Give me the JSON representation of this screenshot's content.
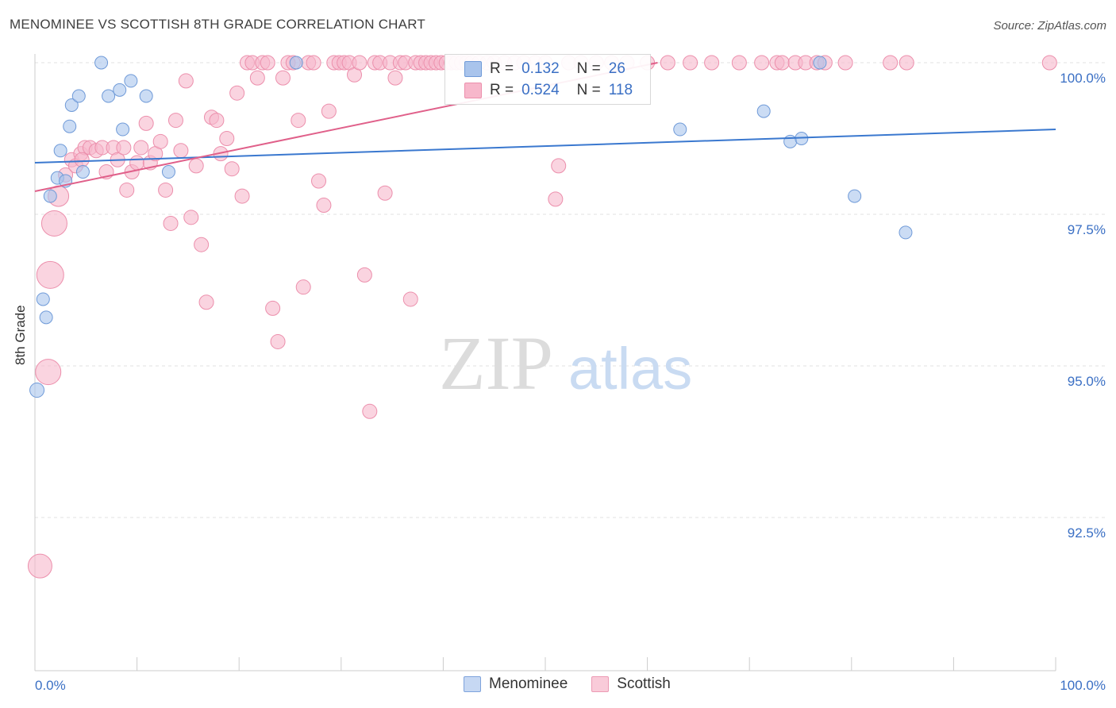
{
  "title": "MENOMINEE VS SCOTTISH 8TH GRADE CORRELATION CHART",
  "source": "Source: ZipAtlas.com",
  "watermark": {
    "zip": "ZIP",
    "atlas": "atlas"
  },
  "legend_stats": [
    {
      "r_label": "R =",
      "r_value": "0.132",
      "n_label": "N =",
      "n_value": "26",
      "color": "#a9c4ec",
      "stroke": "#6f9ad8"
    },
    {
      "r_label": "R =",
      "r_value": "0.524",
      "n_label": "N =",
      "n_value": "118",
      "color": "#f7b7cb",
      "stroke": "#ec8fac"
    }
  ],
  "bottom_legend": [
    "Menominee",
    "Scottish"
  ],
  "chart_data": {
    "type": "scatter",
    "xlabel": "",
    "ylabel": "8th Grade",
    "xlim": [
      0,
      100
    ],
    "ylim": [
      90.0,
      100.3
    ],
    "x_tick_labels": [
      "0.0%",
      "100.0%"
    ],
    "y_ticks": [
      {
        "value": 100.0,
        "label": "100.0%"
      },
      {
        "value": 97.5,
        "label": "97.5%"
      },
      {
        "value": 95.0,
        "label": "95.0%"
      },
      {
        "value": 92.5,
        "label": "92.5%"
      }
    ],
    "grid": true,
    "series": [
      {
        "name": "Menominee",
        "color": "#a9c4ec",
        "stroke": "#6f9ad8",
        "line_color": "#3a78cf",
        "trend": [
          [
            0,
            98.35
          ],
          [
            100,
            98.9
          ]
        ],
        "points": [
          [
            0.2,
            94.6,
            9
          ],
          [
            0.8,
            96.1,
            8
          ],
          [
            1.1,
            95.8,
            8
          ],
          [
            1.5,
            97.8,
            8
          ],
          [
            2.2,
            98.1,
            8
          ],
          [
            2.5,
            98.55,
            8
          ],
          [
            3.0,
            98.05,
            8
          ],
          [
            3.4,
            98.95,
            8
          ],
          [
            3.6,
            99.3,
            8
          ],
          [
            4.3,
            99.45,
            8
          ],
          [
            4.7,
            98.2,
            8
          ],
          [
            6.5,
            100.0,
            8
          ],
          [
            7.2,
            99.45,
            8
          ],
          [
            8.3,
            99.55,
            8
          ],
          [
            8.6,
            98.9,
            8
          ],
          [
            9.4,
            99.7,
            8
          ],
          [
            10.9,
            99.45,
            8
          ],
          [
            13.1,
            98.2,
            8
          ],
          [
            25.6,
            100.0,
            8
          ],
          [
            63.2,
            98.9,
            8
          ],
          [
            71.4,
            99.2,
            8
          ],
          [
            74.0,
            98.7,
            8
          ],
          [
            75.1,
            98.75,
            8
          ],
          [
            76.9,
            100.0,
            8
          ],
          [
            80.3,
            97.8,
            8
          ],
          [
            85.3,
            97.2,
            8
          ]
        ]
      },
      {
        "name": "Scottish",
        "color": "#f7b7cb",
        "stroke": "#ec8fac",
        "line_color": "#e0608a",
        "trend": [
          [
            0,
            97.88
          ],
          [
            61,
            100.0
          ]
        ],
        "points": [
          [
            0.5,
            91.7,
            15
          ],
          [
            1.3,
            94.9,
            16
          ],
          [
            1.5,
            96.5,
            17
          ],
          [
            1.9,
            97.35,
            16
          ],
          [
            2.3,
            97.8,
            13
          ],
          [
            3.0,
            98.15,
            9
          ],
          [
            3.6,
            98.4,
            9
          ],
          [
            4.0,
            98.3,
            9
          ],
          [
            4.5,
            98.5,
            9
          ],
          [
            4.9,
            98.6,
            9
          ],
          [
            5.4,
            98.6,
            9
          ],
          [
            6.0,
            98.55,
            9
          ],
          [
            6.6,
            98.6,
            9
          ],
          [
            7.0,
            98.2,
            9
          ],
          [
            7.7,
            98.6,
            9
          ],
          [
            8.1,
            98.4,
            9
          ],
          [
            8.7,
            98.6,
            9
          ],
          [
            9.0,
            97.9,
            9
          ],
          [
            9.5,
            98.2,
            9
          ],
          [
            10.0,
            98.35,
            9
          ],
          [
            10.4,
            98.6,
            9
          ],
          [
            10.9,
            99.0,
            9
          ],
          [
            11.3,
            98.35,
            9
          ],
          [
            11.8,
            98.5,
            9
          ],
          [
            12.3,
            98.7,
            9
          ],
          [
            12.8,
            97.9,
            9
          ],
          [
            13.3,
            97.35,
            9
          ],
          [
            13.8,
            99.05,
            9
          ],
          [
            14.3,
            98.55,
            9
          ],
          [
            14.8,
            99.7,
            9
          ],
          [
            15.3,
            97.45,
            9
          ],
          [
            15.8,
            98.3,
            9
          ],
          [
            16.3,
            97.0,
            9
          ],
          [
            16.8,
            96.05,
            9
          ],
          [
            17.3,
            99.1,
            9
          ],
          [
            17.8,
            99.05,
            9
          ],
          [
            18.2,
            98.5,
            9
          ],
          [
            18.8,
            98.75,
            9
          ],
          [
            19.3,
            98.25,
            9
          ],
          [
            19.8,
            99.5,
            9
          ],
          [
            20.3,
            97.8,
            9
          ],
          [
            20.8,
            100.0,
            9
          ],
          [
            21.3,
            100.0,
            9
          ],
          [
            21.8,
            99.75,
            9
          ],
          [
            22.3,
            100.0,
            9
          ],
          [
            22.8,
            100.0,
            9
          ],
          [
            23.3,
            95.95,
            9
          ],
          [
            23.8,
            95.4,
            9
          ],
          [
            24.3,
            99.75,
            9
          ],
          [
            24.8,
            100.0,
            9
          ],
          [
            25.3,
            100.0,
            9
          ],
          [
            25.8,
            99.05,
            9
          ],
          [
            26.3,
            96.3,
            9
          ],
          [
            26.8,
            100.0,
            9
          ],
          [
            27.3,
            100.0,
            9
          ],
          [
            27.8,
            98.05,
            9
          ],
          [
            28.3,
            97.65,
            9
          ],
          [
            28.8,
            99.2,
            9
          ],
          [
            29.3,
            100.0,
            9
          ],
          [
            29.8,
            100.0,
            9
          ],
          [
            30.3,
            100.0,
            9
          ],
          [
            30.8,
            100.0,
            9
          ],
          [
            31.3,
            99.8,
            9
          ],
          [
            31.8,
            100.0,
            9
          ],
          [
            32.3,
            96.5,
            9
          ],
          [
            32.8,
            94.25,
            9
          ],
          [
            33.3,
            100.0,
            9
          ],
          [
            33.8,
            100.0,
            9
          ],
          [
            34.3,
            97.85,
            9
          ],
          [
            34.8,
            100.0,
            9
          ],
          [
            35.3,
            99.75,
            9
          ],
          [
            35.8,
            100.0,
            9
          ],
          [
            36.3,
            100.0,
            9
          ],
          [
            36.8,
            96.1,
            9
          ],
          [
            37.3,
            100.0,
            9
          ],
          [
            37.8,
            100.0,
            9
          ],
          [
            38.3,
            100.0,
            9
          ],
          [
            38.8,
            100.0,
            9
          ],
          [
            39.3,
            100.0,
            9
          ],
          [
            39.8,
            100.0,
            9
          ],
          [
            40.3,
            100.0,
            9
          ],
          [
            40.8,
            100.0,
            9
          ],
          [
            41.3,
            100.0,
            9
          ],
          [
            41.8,
            100.0,
            9
          ],
          [
            42.3,
            100.0,
            9
          ],
          [
            42.8,
            100.0,
            9
          ],
          [
            43.5,
            100.0,
            9
          ],
          [
            44.3,
            100.0,
            9
          ],
          [
            45.0,
            100.0,
            9
          ],
          [
            46.0,
            100.0,
            9
          ],
          [
            47.0,
            100.0,
            9
          ],
          [
            47.9,
            100.0,
            9
          ],
          [
            49.0,
            100.0,
            9
          ],
          [
            50.0,
            100.0,
            9
          ],
          [
            51.0,
            97.75,
            9
          ],
          [
            51.3,
            98.3,
            9
          ],
          [
            52.3,
            100.0,
            9
          ],
          [
            53.5,
            100.0,
            9
          ],
          [
            55.0,
            100.0,
            9
          ],
          [
            56.5,
            100.0,
            9
          ],
          [
            58.0,
            100.0,
            9
          ],
          [
            60.0,
            100.0,
            9
          ],
          [
            62.0,
            100.0,
            9
          ],
          [
            64.2,
            100.0,
            9
          ],
          [
            66.3,
            100.0,
            9
          ],
          [
            69.0,
            100.0,
            9
          ],
          [
            71.2,
            100.0,
            9
          ],
          [
            72.7,
            100.0,
            9
          ],
          [
            73.2,
            100.0,
            9
          ],
          [
            74.5,
            100.0,
            9
          ],
          [
            75.5,
            100.0,
            9
          ],
          [
            76.6,
            100.0,
            9
          ],
          [
            77.4,
            100.0,
            9
          ],
          [
            79.4,
            100.0,
            9
          ],
          [
            83.8,
            100.0,
            9
          ],
          [
            85.4,
            100.0,
            9
          ],
          [
            99.4,
            100.0,
            9
          ],
          [
            4.6,
            98.4,
            9
          ]
        ]
      }
    ]
  }
}
